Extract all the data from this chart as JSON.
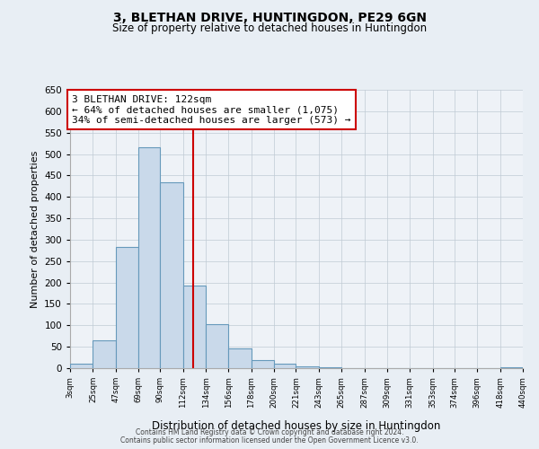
{
  "title": "3, BLETHAN DRIVE, HUNTINGDON, PE29 6GN",
  "subtitle": "Size of property relative to detached houses in Huntingdon",
  "xlabel": "Distribution of detached houses by size in Huntingdon",
  "ylabel": "Number of detached properties",
  "footnote1": "Contains HM Land Registry data © Crown copyright and database right 2024.",
  "footnote2": "Contains public sector information licensed under the Open Government Licence v3.0.",
  "bar_color": "#c9d9ea",
  "bar_edge_color": "#6699bb",
  "bin_edges": [
    3,
    25,
    47,
    69,
    90,
    112,
    134,
    156,
    178,
    200,
    221,
    243,
    265,
    287,
    309,
    331,
    353,
    374,
    396,
    418,
    440
  ],
  "bar_heights": [
    10,
    65,
    283,
    515,
    435,
    193,
    102,
    46,
    18,
    10,
    5,
    2,
    0,
    0,
    0,
    0,
    0,
    0,
    0,
    2
  ],
  "tick_labels": [
    "3sqm",
    "25sqm",
    "47sqm",
    "69sqm",
    "90sqm",
    "112sqm",
    "134sqm",
    "156sqm",
    "178sqm",
    "200sqm",
    "221sqm",
    "243sqm",
    "265sqm",
    "287sqm",
    "309sqm",
    "331sqm",
    "353sqm",
    "374sqm",
    "396sqm",
    "418sqm",
    "440sqm"
  ],
  "vline_x": 122,
  "vline_color": "#cc0000",
  "annotation_title": "3 BLETHAN DRIVE: 122sqm",
  "annotation_line1": "← 64% of detached houses are smaller (1,075)",
  "annotation_line2": "34% of semi-detached houses are larger (573) →",
  "annotation_box_color": "#ffffff",
  "annotation_box_edge": "#cc0000",
  "ylim": [
    0,
    650
  ],
  "yticks": [
    0,
    50,
    100,
    150,
    200,
    250,
    300,
    350,
    400,
    450,
    500,
    550,
    600,
    650
  ],
  "background_color": "#e8eef4",
  "plot_bg_color": "#eef2f7",
  "grid_color": "#c0cad4"
}
